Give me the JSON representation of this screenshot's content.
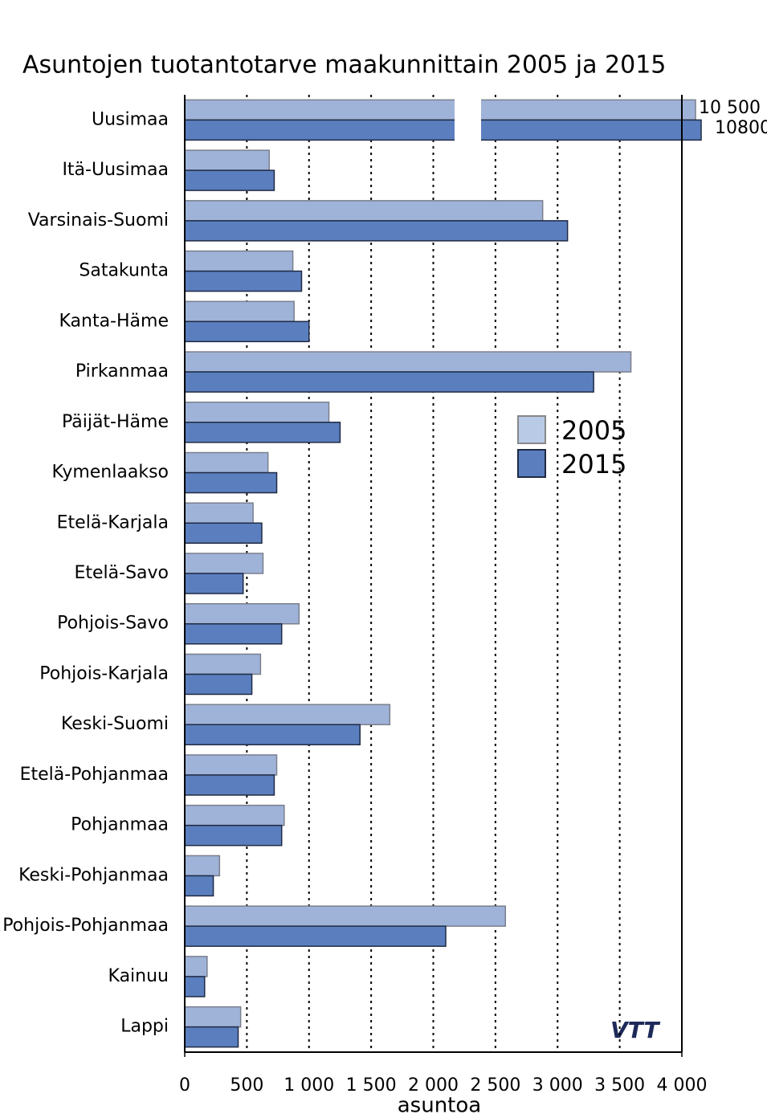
{
  "chart_data": {
    "type": "barh",
    "title": "Asuntojen tuotantotarve  maakunnittain 2005 ja 2015",
    "x_label": "asuntoa",
    "logo_text": "VTT",
    "categories": [
      "Uusimaa",
      "Itä-Uusimaa",
      "Varsinais-Suomi",
      "Satakunta",
      "Kanta-Häme",
      "Pirkanmaa",
      "Päijät-Häme",
      "Kymenlaakso",
      "Etelä-Karjala",
      "Etelä-Savo",
      "Pohjois-Savo",
      "Pohjois-Karjala",
      "Keski-Suomi",
      "Etelä-Pohjanmaa",
      "Pohjanmaa",
      "Keski-Pohjanmaa",
      "Pohjois-Pohjanmaa",
      "Kainuu",
      "Lappi"
    ],
    "series": [
      {
        "name": "2005",
        "color": "#9fb3d9",
        "legend_color": "#b9cae7",
        "stroke": "#7a7f8c",
        "values": [
          10500,
          680,
          2880,
          870,
          880,
          3590,
          1160,
          670,
          550,
          630,
          920,
          610,
          1650,
          740,
          800,
          280,
          2580,
          180,
          450
        ],
        "value_labels": [
          "10 500",
          null,
          null,
          null,
          null,
          null,
          null,
          null,
          null,
          null,
          null,
          null,
          null,
          null,
          null,
          null,
          null,
          null,
          null
        ]
      },
      {
        "name": "2015",
        "color": "#5b7fbe",
        "legend_color": "#5b7fbe",
        "stroke": "#1f2a44",
        "values": [
          10800,
          720,
          3080,
          940,
          1000,
          3290,
          1250,
          740,
          620,
          470,
          780,
          540,
          1410,
          720,
          780,
          230,
          2100,
          160,
          430
        ],
        "value_labels": [
          "10800",
          null,
          null,
          null,
          null,
          null,
          null,
          null,
          null,
          null,
          null,
          null,
          null,
          null,
          null,
          null,
          null,
          null,
          null
        ]
      }
    ],
    "xlim": [
      0,
      4000
    ],
    "xticks": [
      0,
      500,
      {
        "value": 1000,
        "label": "1 000"
      },
      {
        "value": 1500,
        "label": "1 500"
      },
      {
        "value": 2000,
        "label": "2 000"
      },
      {
        "value": 2500,
        "label": "2 500"
      },
      {
        "value": 3000,
        "label": "3 000"
      },
      {
        "value": 3500,
        "label": "3 500"
      },
      {
        "value": 4000,
        "label": "4 000"
      }
    ],
    "grid": true,
    "axis_break": true
  }
}
